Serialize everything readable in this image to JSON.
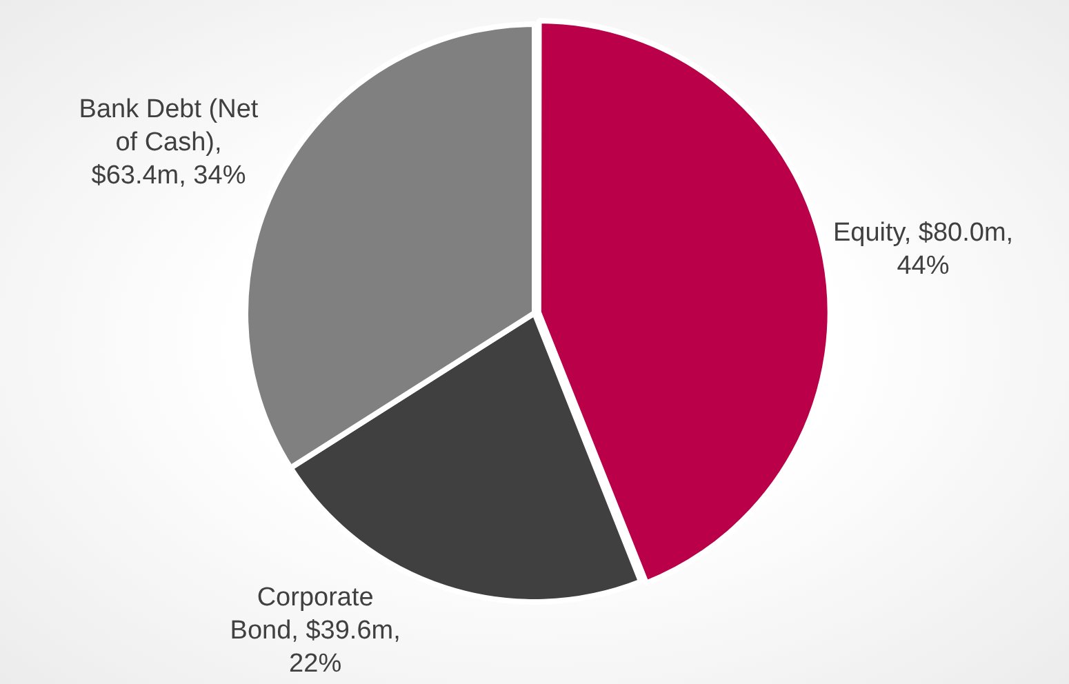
{
  "chart_data": {
    "type": "pie",
    "categories": [
      "Equity, $80.0m, 44%",
      "Corporate Bond, $39.6m, 22%",
      "Bank Debt (Net of Cash), $63.4m, 34%"
    ],
    "values": [
      44,
      22,
      34
    ],
    "colors": [
      "#b90048",
      "#404040",
      "#808080"
    ],
    "legend": false
  }
}
